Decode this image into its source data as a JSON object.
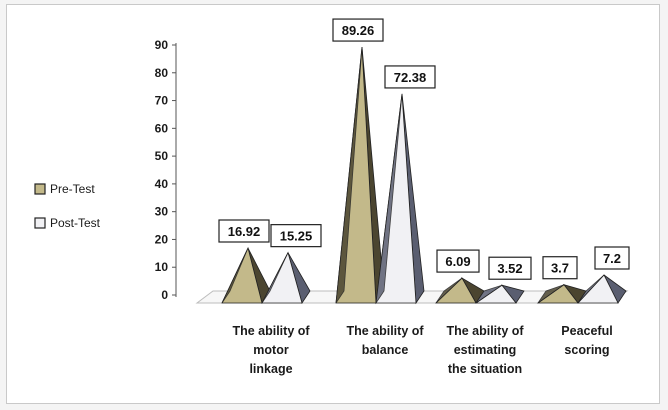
{
  "chart_data": {
    "type": "bar",
    "bar_shape": "pyramid-3d",
    "categories": [
      [
        "The ability of",
        "motor",
        "linkage"
      ],
      [
        "The ability of",
        "balance"
      ],
      [
        "The ability of",
        "estimating",
        "the situation"
      ],
      [
        "Peaceful",
        "scoring"
      ]
    ],
    "series": [
      {
        "name": "Pre-Test",
        "values": [
          16.92,
          89.26,
          6.09,
          3.7
        ],
        "labels": [
          "16.92",
          "89.26",
          "6.09",
          "3.7"
        ],
        "color": "#c3b98a",
        "shade": "#4b4530"
      },
      {
        "name": "Post-Test",
        "values": [
          15.25,
          72.38,
          3.52,
          7.2
        ],
        "labels": [
          "15.25",
          "72.38",
          "3.52",
          "7.2"
        ],
        "color": "#f1f1f4",
        "shade": "#5a5e70"
      }
    ],
    "y_ticks": [
      "0",
      "10",
      "20",
      "30",
      "40",
      "50",
      "60",
      "70",
      "80",
      "90"
    ],
    "ylim": [
      0,
      90
    ],
    "legend_position": "left",
    "grid": false
  }
}
